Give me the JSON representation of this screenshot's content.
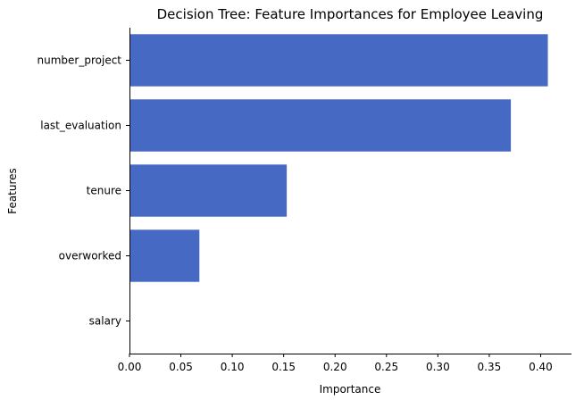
{
  "chart_data": {
    "type": "bar",
    "orientation": "horizontal",
    "title": "Decision Tree: Feature Importances for Employee Leaving",
    "xlabel": "Importance",
    "ylabel": "Features",
    "categories": [
      "number_project",
      "last_evaluation",
      "tenure",
      "overworked",
      "salary"
    ],
    "values": [
      0.407,
      0.371,
      0.153,
      0.068,
      0.0
    ],
    "xlim": [
      0,
      0.43
    ],
    "xticks": [
      0.0,
      0.05,
      0.1,
      0.15,
      0.2,
      0.25,
      0.3,
      0.35,
      0.4
    ],
    "xtick_labels": [
      "0.00",
      "0.05",
      "0.10",
      "0.15",
      "0.20",
      "0.25",
      "0.30",
      "0.35",
      "0.40"
    ],
    "bar_color": "#4669c3",
    "grid": false,
    "legend": "none"
  }
}
